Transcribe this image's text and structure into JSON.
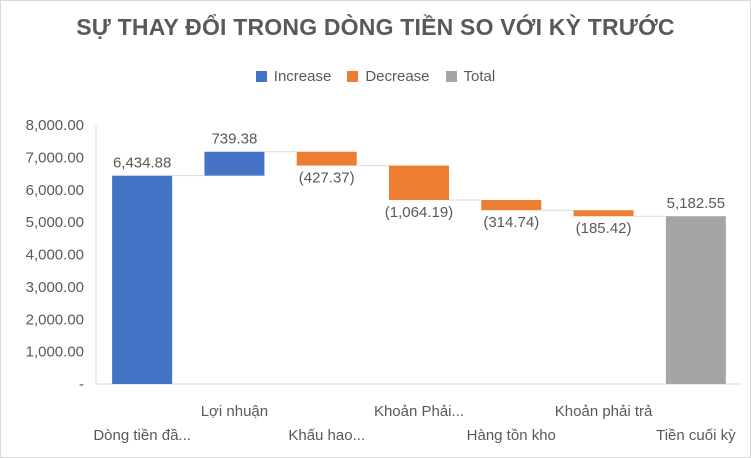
{
  "chart_data": {
    "type": "waterfall",
    "title": "SỰ THAY ĐỔI TRONG DÒNG TIỀN SO VỚI KỲ TRƯỚC",
    "legend": [
      {
        "label": "Increase",
        "color": "#4472c4"
      },
      {
        "label": "Decrease",
        "color": "#ed7d31"
      },
      {
        "label": "Total",
        "color": "#a5a5a5"
      }
    ],
    "legend_position": "top",
    "categories": [
      "Dòng tiền đầ...",
      "Lợi nhuận",
      "Khấu hao...",
      "Khoản Phải...",
      "Hàng tồn kho",
      "Khoản phải trả",
      "Tiền cuối kỳ"
    ],
    "values": [
      6434.88,
      739.38,
      -427.37,
      -1064.19,
      -314.74,
      -185.42,
      5182.55
    ],
    "kinds": [
      "increase",
      "increase",
      "decrease",
      "decrease",
      "decrease",
      "decrease",
      "total"
    ],
    "data_labels": [
      "6,434.88",
      "739.38",
      "(427.37)",
      "(1,064.19)",
      "(314.74)",
      "(185.42)",
      "5,182.55"
    ],
    "y_ticks": [
      0,
      1000,
      2000,
      3000,
      4000,
      5000,
      6000,
      7000,
      8000
    ],
    "y_tick_labels": [
      "-",
      "1,000.00",
      "2,000.00",
      "3,000.00",
      "4,000.00",
      "5,000.00",
      "6,000.00",
      "7,000.00",
      "8,000.00"
    ],
    "ylim": [
      0,
      8000
    ],
    "grid": false,
    "xlabel": "",
    "ylabel": ""
  }
}
